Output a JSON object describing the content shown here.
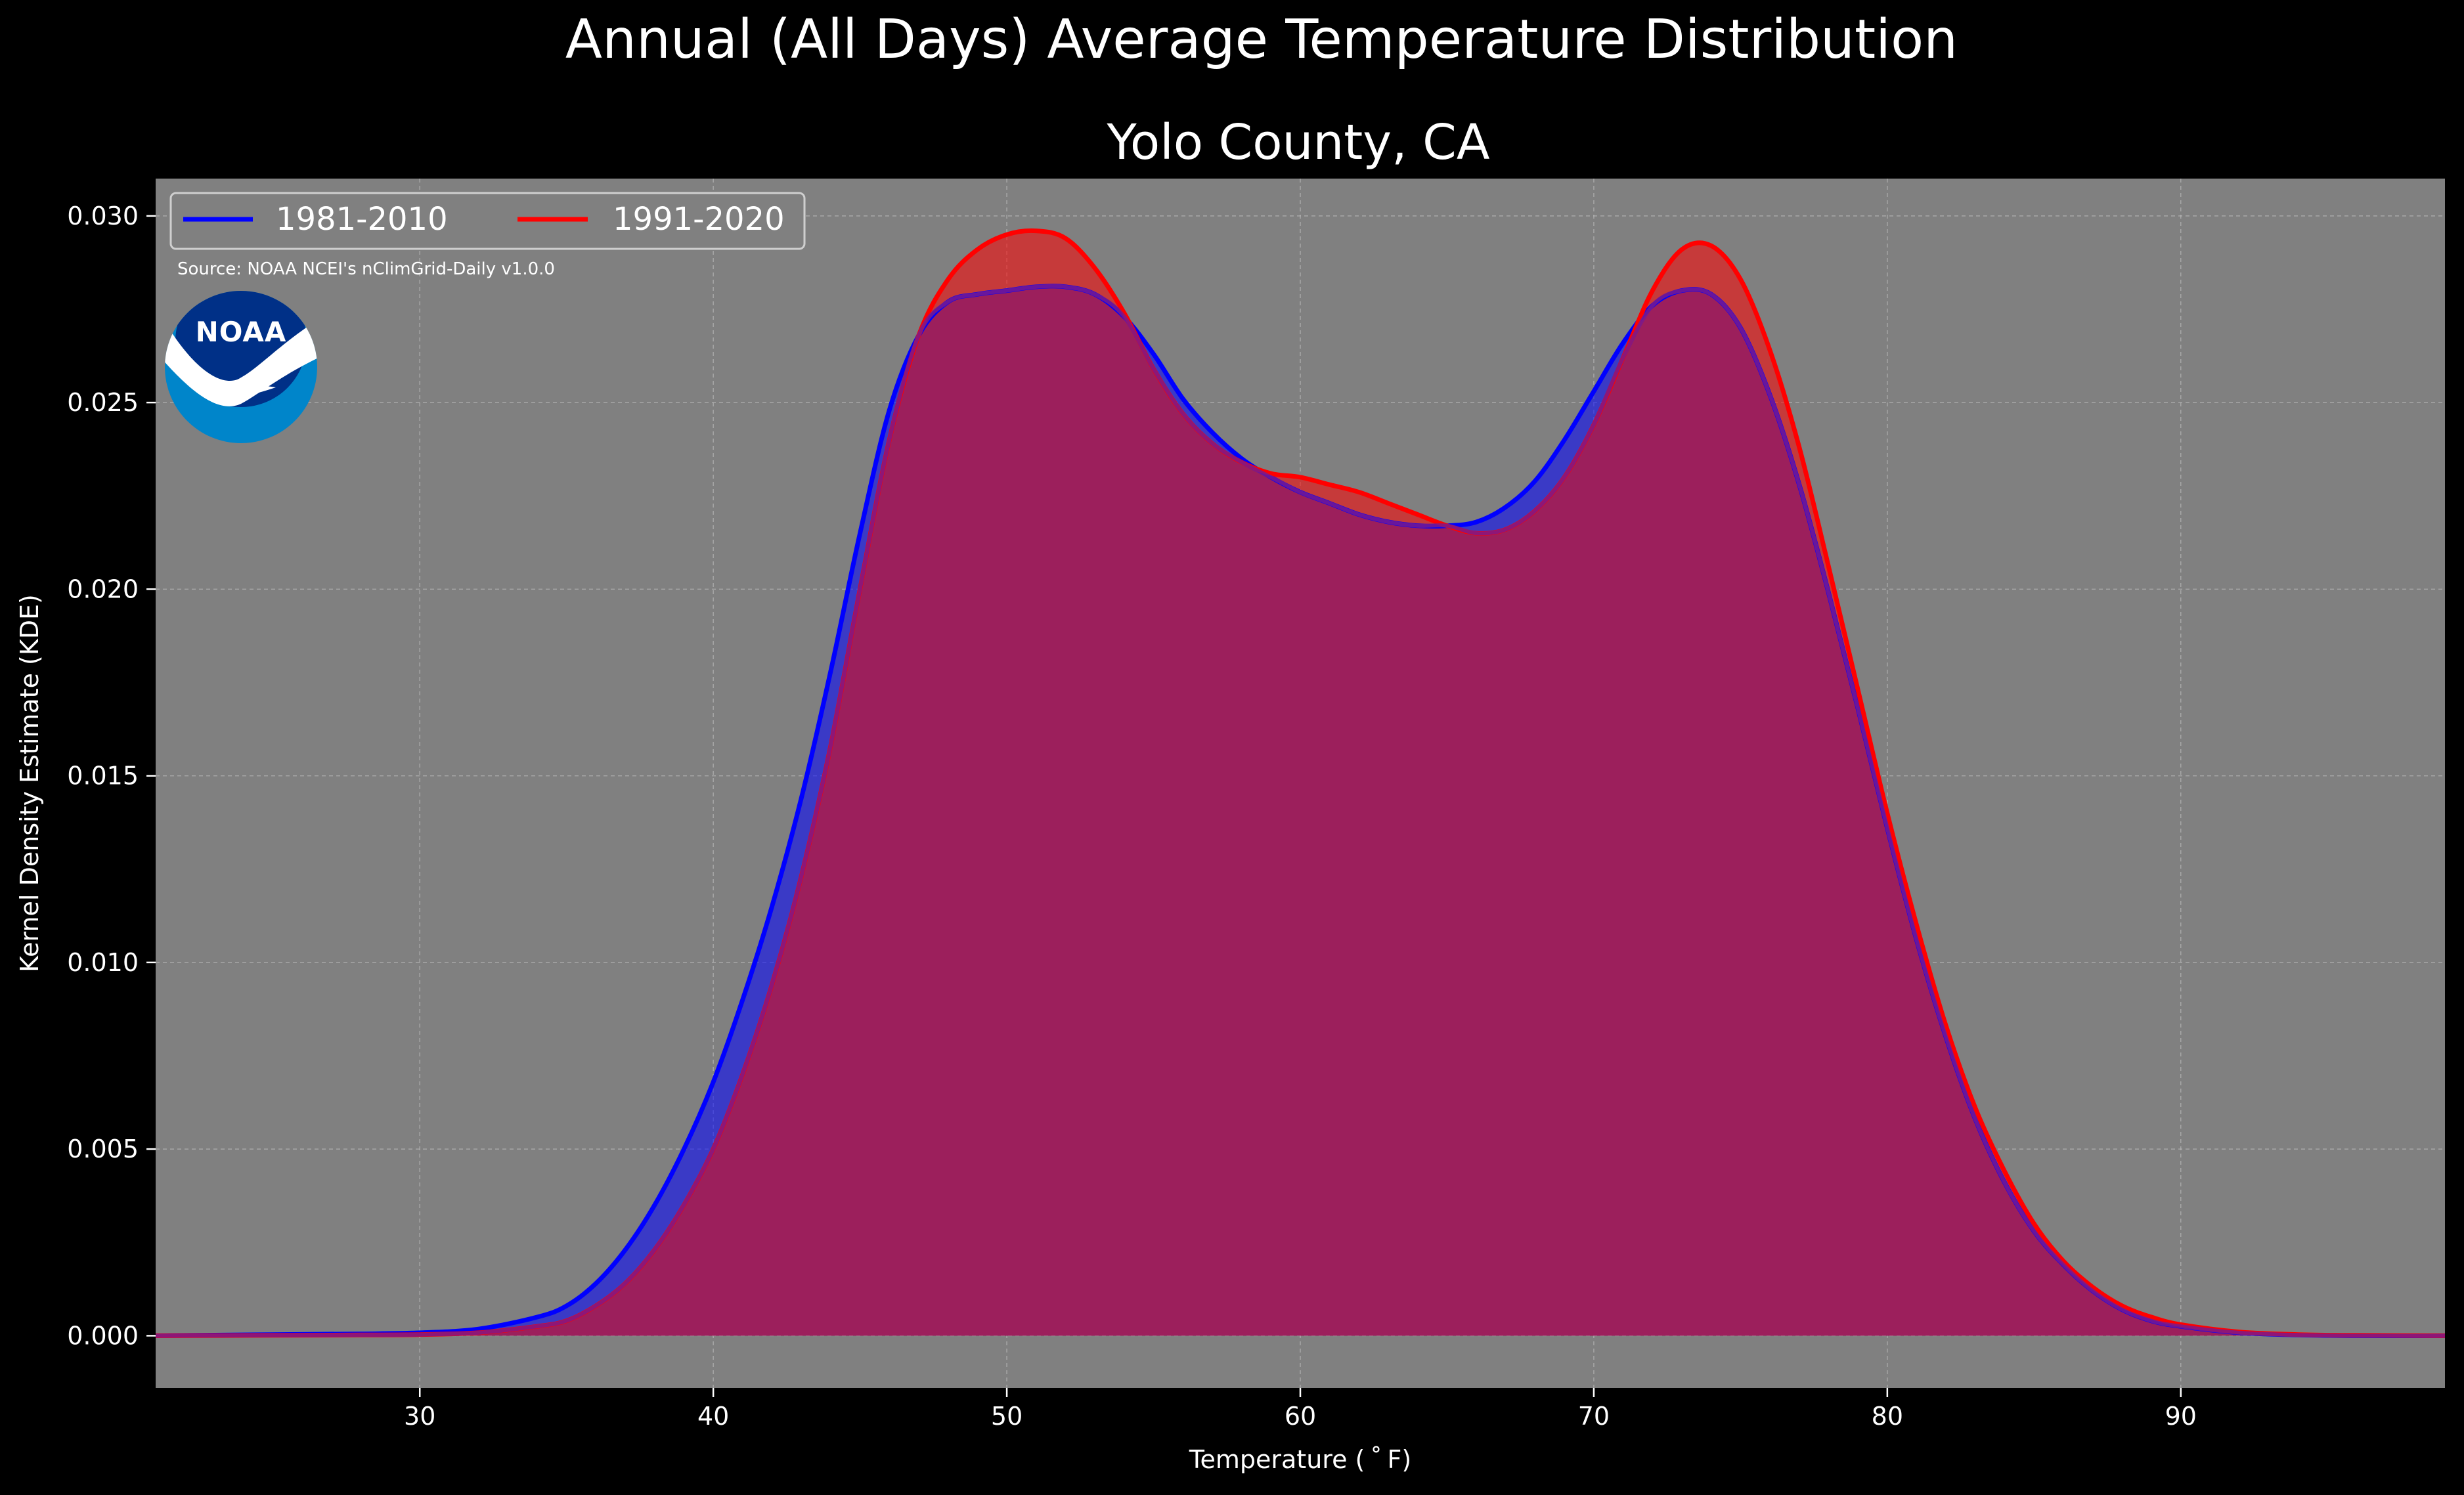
{
  "chart_data": {
    "type": "area",
    "suptitle": "Annual (All Days) Average Temperature Distribution",
    "title": "Yolo County, CA",
    "xlabel": "Temperature ($^\\circ$F)",
    "xlabel_display": "Temperature ( ˚ F)",
    "ylabel": "Kernel Density Estimate (KDE)",
    "xlim": [
      21,
      99
    ],
    "ylim": [
      -0.0014,
      0.031
    ],
    "xticks": [
      30,
      40,
      50,
      60,
      70,
      80,
      90
    ],
    "xtick_labels": [
      "30",
      "40",
      "50",
      "60",
      "70",
      "80",
      "90"
    ],
    "yticks": [
      0.0,
      0.005,
      0.01,
      0.015,
      0.02,
      0.025,
      0.03
    ],
    "ytick_labels": [
      "0.000",
      "0.005",
      "0.010",
      "0.015",
      "0.020",
      "0.025",
      "0.030"
    ],
    "grid": true,
    "legend_position": "top-left",
    "source_note": "Source: NOAA NCEI's nClimGrid-Daily v1.0.0",
    "logo_text": "NOAA",
    "colors": {
      "background": "#000000",
      "plot_background": "#808080",
      "text": "#ffffff",
      "grid": "#b8b8b8",
      "series_1981": "#0000ff",
      "series_1991": "#ff0000",
      "overlap": "#9c1f5c",
      "logo_outer": "#0085ca",
      "logo_inner": "#003087"
    },
    "series": [
      {
        "name": "1981-2010",
        "color": "#0000ff",
        "x": [
          21,
          25,
          28,
          30,
          32,
          34,
          35,
          36,
          37,
          38,
          39,
          40,
          41,
          42,
          43,
          44,
          45,
          46,
          47,
          48,
          49,
          50,
          51,
          52,
          53,
          54,
          55,
          56,
          57,
          58,
          59,
          60,
          61,
          62,
          63,
          64,
          65,
          66,
          67,
          68,
          69,
          70,
          71,
          72,
          73,
          74,
          75,
          76,
          77,
          78,
          79,
          80,
          81,
          82,
          83,
          84,
          85,
          86,
          87,
          88,
          89,
          90,
          92,
          94,
          96,
          99
        ],
        "y": [
          0.0,
          3e-05,
          5e-05,
          8e-05,
          0.00018,
          0.0005,
          0.0008,
          0.0014,
          0.0023,
          0.0035,
          0.005,
          0.0068,
          0.009,
          0.0115,
          0.0144,
          0.0178,
          0.0215,
          0.0248,
          0.0268,
          0.0277,
          0.0279,
          0.028,
          0.0281,
          0.0281,
          0.0279,
          0.0273,
          0.0263,
          0.0251,
          0.0242,
          0.0235,
          0.023,
          0.0226,
          0.0223,
          0.022,
          0.0218,
          0.0217,
          0.0217,
          0.0218,
          0.0222,
          0.0229,
          0.024,
          0.0253,
          0.0266,
          0.0276,
          0.028,
          0.0279,
          0.027,
          0.0252,
          0.0228,
          0.0199,
          0.0168,
          0.0136,
          0.0106,
          0.008,
          0.0058,
          0.0041,
          0.0028,
          0.0019,
          0.0012,
          0.0007,
          0.0004,
          0.00025,
          8e-05,
          2e-05,
          0.0,
          0.0
        ]
      },
      {
        "name": "1991-2020",
        "color": "#ff0000",
        "x": [
          21,
          25,
          28,
          30,
          32,
          34,
          35,
          36,
          37,
          38,
          39,
          40,
          41,
          42,
          43,
          44,
          45,
          46,
          47,
          48,
          49,
          50,
          51,
          52,
          53,
          54,
          55,
          56,
          57,
          58,
          59,
          60,
          61,
          62,
          63,
          64,
          65,
          66,
          67,
          68,
          69,
          70,
          71,
          72,
          73,
          74,
          75,
          76,
          77,
          78,
          79,
          80,
          81,
          82,
          83,
          84,
          85,
          86,
          87,
          88,
          89,
          90,
          92,
          94,
          96,
          99
        ],
        "y": [
          0.0,
          1e-05,
          2e-05,
          3e-05,
          8e-05,
          0.00025,
          0.0004,
          0.0008,
          0.0014,
          0.0023,
          0.0035,
          0.005,
          0.007,
          0.0094,
          0.0123,
          0.0158,
          0.02,
          0.024,
          0.0268,
          0.0283,
          0.0291,
          0.0295,
          0.0296,
          0.0294,
          0.0286,
          0.0274,
          0.0259,
          0.0247,
          0.0239,
          0.0234,
          0.0231,
          0.023,
          0.0228,
          0.0226,
          0.0223,
          0.022,
          0.0217,
          0.0215,
          0.0216,
          0.0221,
          0.023,
          0.0244,
          0.0262,
          0.028,
          0.0291,
          0.0292,
          0.0283,
          0.0264,
          0.0238,
          0.0206,
          0.0173,
          0.014,
          0.011,
          0.0083,
          0.0061,
          0.0044,
          0.003,
          0.002,
          0.0013,
          0.0008,
          0.0005,
          0.0003,
          0.0001,
          3e-05,
          1e-05,
          0.0
        ]
      }
    ]
  }
}
